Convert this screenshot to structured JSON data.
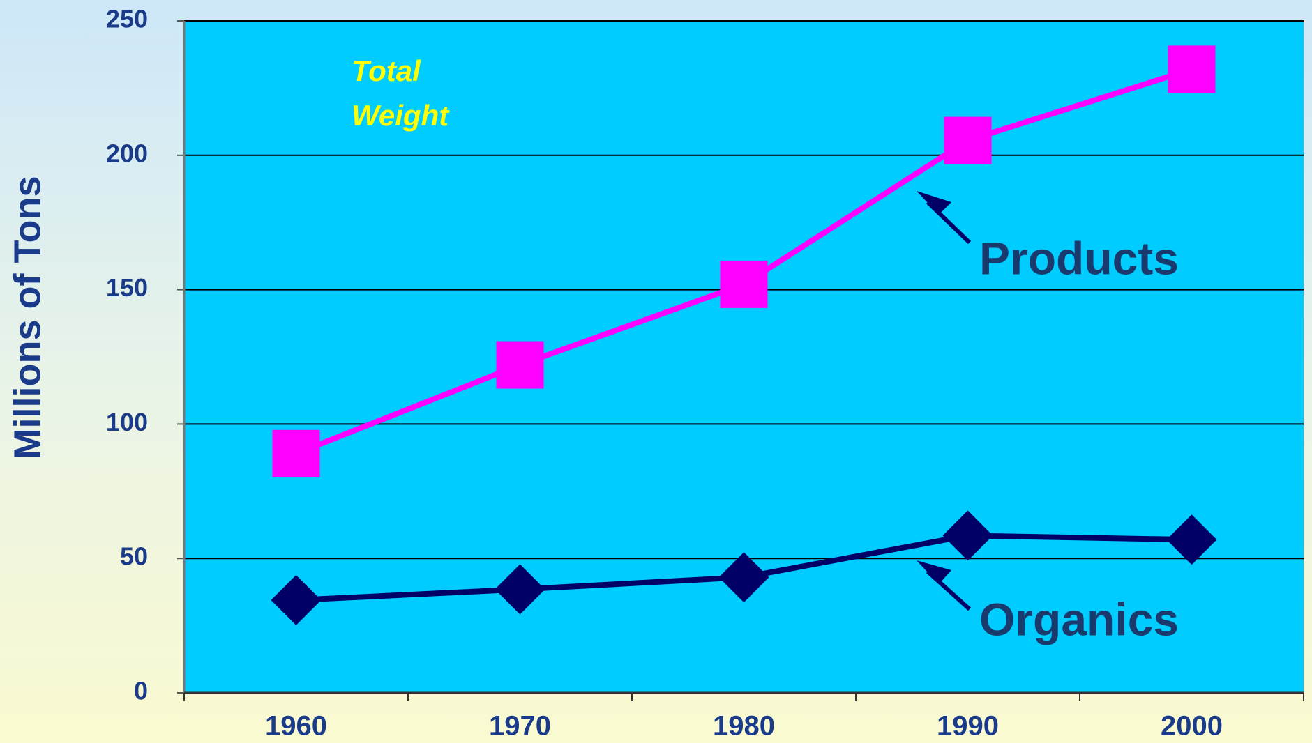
{
  "chart_data": {
    "type": "line",
    "y_label": "Millions of Tons",
    "annotation": "Total Weight",
    "categories": [
      "1960",
      "1970",
      "1980",
      "1990",
      "2000"
    ],
    "series": [
      {
        "name": "Products",
        "color": "#ff00ff",
        "marker": "square",
        "values": [
          89,
          122,
          152,
          205.5,
          232
        ]
      },
      {
        "name": "Organics",
        "color": "#000066",
        "marker": "diamond",
        "values": [
          34.5,
          38.5,
          43,
          58.5,
          57
        ]
      }
    ],
    "ylim": [
      0,
      250
    ],
    "yticks": [
      0,
      50,
      100,
      150,
      200,
      250
    ],
    "grid": true,
    "plot_color": "#00ccff"
  }
}
